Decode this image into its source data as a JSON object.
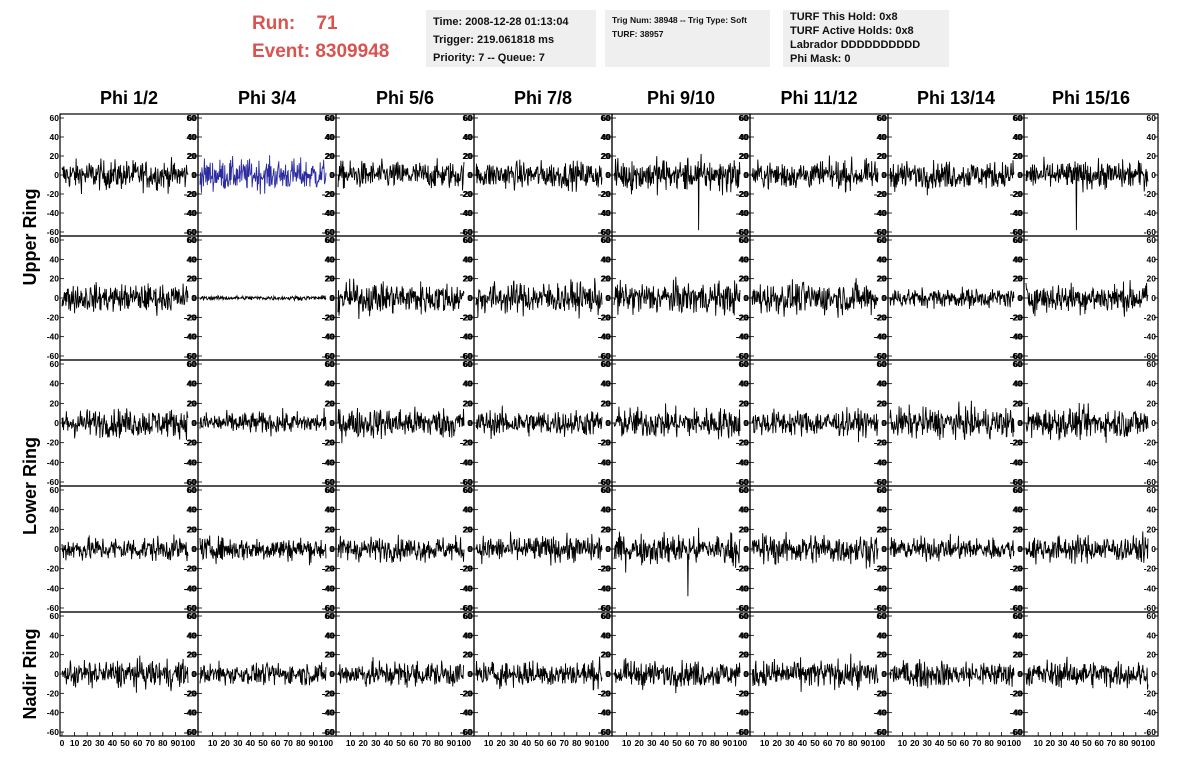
{
  "header": {
    "run_label": "Run:",
    "run_value": "71",
    "event_label": "Event:",
    "event_value": "8309948"
  },
  "info_boxes": {
    "time": [
      "Time: 2008-12-28 01:13:04",
      "Trigger: 219.061818 ms",
      "Priority: 7 -- Queue: 7"
    ],
    "trig": [
      "Trig Num: 38948 -- Trig Type: Soft",
      "",
      "TURF: 38957"
    ],
    "turf": [
      "TURF This Hold: 0x8",
      "TURF Active Holds: 0x8",
      "Labrador DDDDDDDDDD",
      "Phi Mask: 0"
    ]
  },
  "chart_data": {
    "type": "line",
    "columns": [
      "Phi 1/2",
      "Phi 3/4",
      "Phi 5/6",
      "Phi 7/8",
      "Phi 9/10",
      "Phi 11/12",
      "Phi 13/14",
      "Phi 15/16"
    ],
    "row_groups": [
      {
        "label": "Upper Ring",
        "rows": 2
      },
      {
        "label": "Lower Ring",
        "rows": 2
      },
      {
        "label": "Nadir Ring",
        "rows": 1
      }
    ],
    "x_range": [
      0,
      100
    ],
    "y_range": [
      -60,
      60
    ],
    "y_ticks": [
      "60",
      "40",
      "20",
      "0",
      "-20",
      "-40",
      "-60"
    ],
    "x_ticks": [
      "0",
      "10",
      "20",
      "30",
      "40",
      "50",
      "60",
      "70",
      "80",
      "90",
      "100"
    ],
    "highlight_color": "#2b2b9f",
    "trace_color": "#000000",
    "panels": [
      [
        {
          "amp": 14
        },
        {
          "amp": 15,
          "color": "highlight"
        },
        {
          "amp": 13
        },
        {
          "amp": 13
        },
        {
          "amp": 16,
          "spike": -58
        },
        {
          "amp": 13
        },
        {
          "amp": 13
        },
        {
          "amp": 13,
          "spike": -58
        }
      ],
      [
        {
          "amp": 13
        },
        {
          "amp": 2
        },
        {
          "amp": 15
        },
        {
          "amp": 15
        },
        {
          "amp": 15
        },
        {
          "amp": 15
        },
        {
          "amp": 9
        },
        {
          "amp": 14
        }
      ],
      [
        {
          "amp": 13
        },
        {
          "amp": 10
        },
        {
          "amp": 14
        },
        {
          "amp": 12
        },
        {
          "amp": 14
        },
        {
          "amp": 12
        },
        {
          "amp": 14
        },
        {
          "amp": 14
        }
      ],
      [
        {
          "amp": 11
        },
        {
          "amp": 11
        },
        {
          "amp": 11
        },
        {
          "amp": 12
        },
        {
          "amp": 14,
          "spike": -48
        },
        {
          "amp": 14
        },
        {
          "amp": 10
        },
        {
          "amp": 12
        }
      ],
      [
        {
          "amp": 13
        },
        {
          "amp": 10
        },
        {
          "amp": 12
        },
        {
          "amp": 12
        },
        {
          "amp": 12
        },
        {
          "amp": 13
        },
        {
          "amp": 12
        },
        {
          "amp": 12
        }
      ]
    ]
  }
}
